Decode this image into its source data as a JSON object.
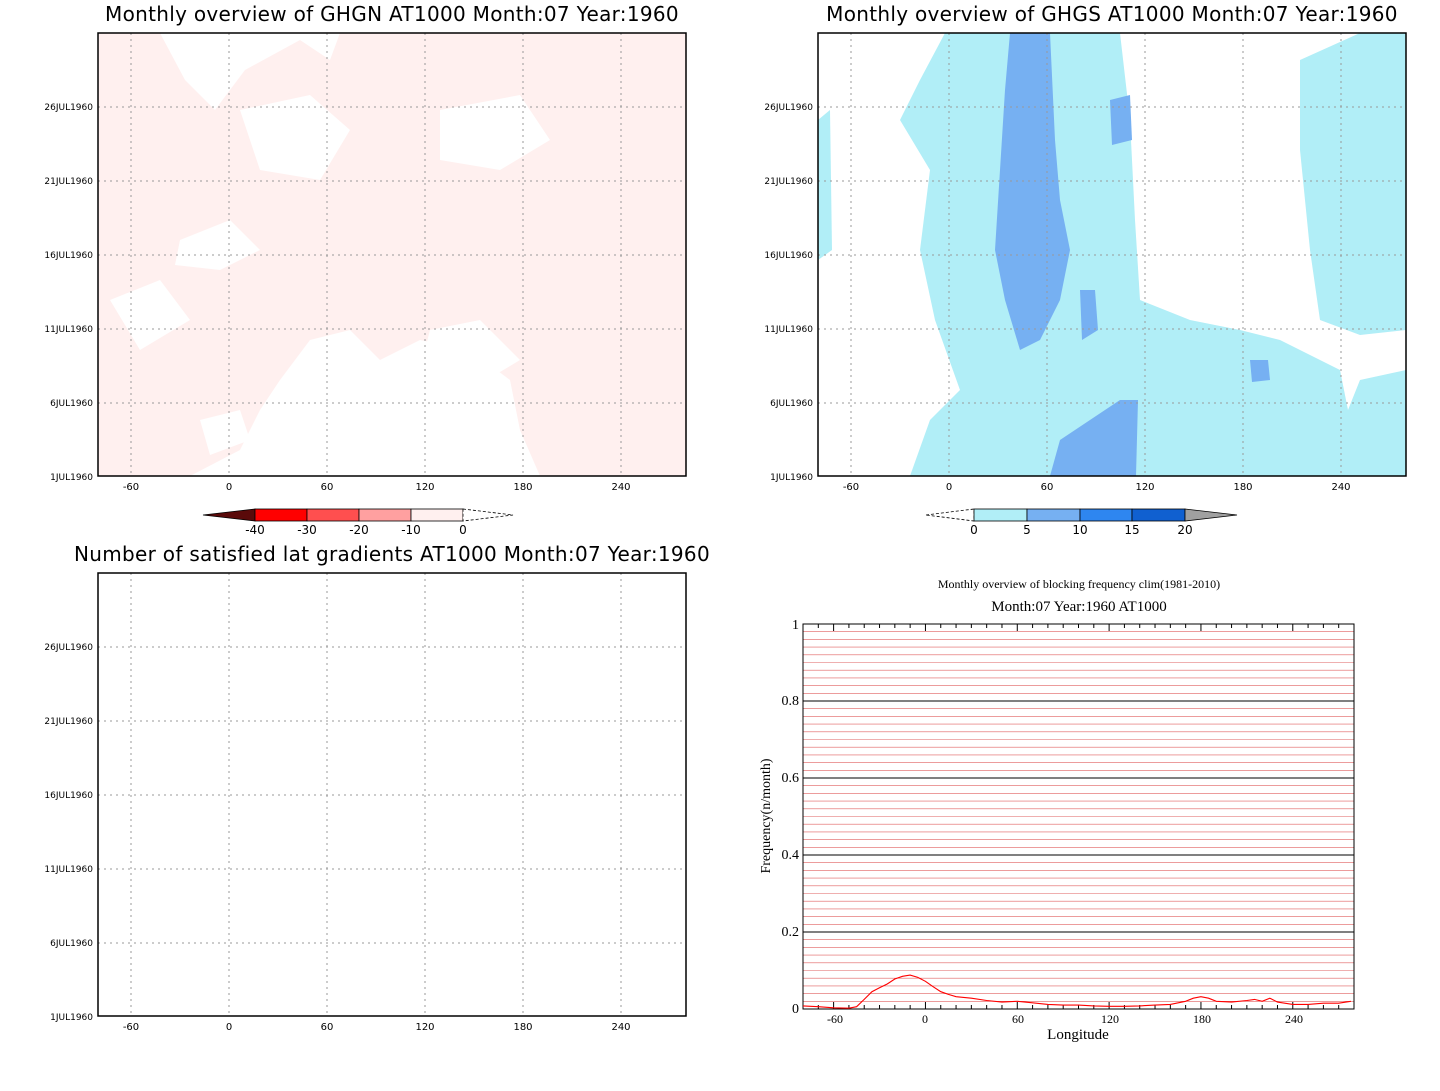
{
  "colors": {
    "ghgn_fill": "#fff0ef",
    "ghgs_light": "#b1eef7",
    "ghgs_mid": "#76b0f2",
    "freq_line": "#ff0000",
    "hline_red": "#e06060",
    "hline_black": "#000000"
  },
  "chart_data": [
    {
      "id": "ghgn",
      "type": "heatmap",
      "title": "Monthly overview of GHGN AT1000 Month:07 Year:1960",
      "x_ticks": [
        "-60",
        "0",
        "60",
        "120",
        "180",
        "240"
      ],
      "x_values": [
        -60,
        0,
        60,
        120,
        180,
        240
      ],
      "y_ticks": [
        "1JUL1960",
        "6JUL1960",
        "11JUL1960",
        "16JUL1960",
        "21JUL1960",
        "26JUL1960"
      ],
      "y_values": [
        1,
        6,
        11,
        16,
        21,
        26
      ],
      "xlim": [
        -80,
        280
      ],
      "ylim": [
        1,
        31
      ],
      "grid": true,
      "colorbar": {
        "labels": [
          "-40",
          "-30",
          "-20",
          "-10",
          "0"
        ],
        "colors": [
          "#5a0a0a",
          "#ff0000",
          "#ff4f4f",
          "#ffa0a0",
          "#fff0ef"
        ]
      }
    },
    {
      "id": "ghgs",
      "type": "heatmap",
      "title": "Monthly overview of GHGS AT1000 Month:07 Year:1960",
      "x_ticks": [
        "-60",
        "0",
        "60",
        "120",
        "180",
        "240"
      ],
      "x_values": [
        -60,
        0,
        60,
        120,
        180,
        240
      ],
      "y_ticks": [
        "1JUL1960",
        "6JUL1960",
        "11JUL1960",
        "16JUL1960",
        "21JUL1960",
        "26JUL1960"
      ],
      "y_values": [
        1,
        6,
        11,
        16,
        21,
        26
      ],
      "xlim": [
        -80,
        280
      ],
      "ylim": [
        1,
        31
      ],
      "grid": true,
      "colorbar": {
        "labels": [
          "0",
          "5",
          "10",
          "15",
          "20"
        ],
        "colors": [
          "#b1eef7",
          "#76b0f2",
          "#2e86f0",
          "#1060d0",
          "#a0a0a0"
        ]
      }
    },
    {
      "id": "lat_gradients",
      "type": "heatmap",
      "title": "Number of satisfied lat gradients AT1000 Month:07 Year:1960",
      "x_ticks": [
        "-60",
        "0",
        "60",
        "120",
        "180",
        "240"
      ],
      "x_values": [
        -60,
        0,
        60,
        120,
        180,
        240
      ],
      "y_ticks": [
        "1JUL1960",
        "6JUL1960",
        "11JUL1960",
        "16JUL1960",
        "21JUL1960",
        "26JUL1960"
      ],
      "y_values": [
        1,
        6,
        11,
        16,
        21,
        26
      ],
      "xlim": [
        -80,
        280
      ],
      "ylim": [
        1,
        31
      ],
      "grid": true
    },
    {
      "id": "blocking_freq",
      "type": "line",
      "title": "Monthly overview of blocking frequency clim(1981-2010)",
      "subtitle": "Month:07 Year:1960  AT1000",
      "xlabel": "Longitude",
      "ylabel": "Frequency(n/month)",
      "x_ticks": [
        "-60",
        "0",
        "60",
        "120",
        "180",
        "240"
      ],
      "x_values": [
        -60,
        0,
        60,
        120,
        180,
        240
      ],
      "y_ticks": [
        "0",
        "0.2",
        "0.4",
        "0.6",
        "0.8",
        "1"
      ],
      "y_values": [
        0,
        0.2,
        0.4,
        0.6,
        0.8,
        1
      ],
      "xlim": [
        -80,
        280
      ],
      "ylim": [
        0,
        1
      ],
      "series": [
        {
          "x": [
            -80,
            -70,
            -60,
            -50,
            -45,
            -40,
            -35,
            -30,
            -25,
            -20,
            -15,
            -10,
            -5,
            0,
            5,
            10,
            15,
            20,
            25,
            30,
            40,
            50,
            60,
            70,
            80,
            90,
            100,
            110,
            120,
            130,
            140,
            150,
            160,
            170,
            175,
            180,
            185,
            190,
            200,
            210,
            215,
            220,
            225,
            230,
            240,
            250,
            260,
            270,
            278
          ],
          "y": [
            0.008,
            0.006,
            0.003,
            0.002,
            0.006,
            0.025,
            0.045,
            0.055,
            0.065,
            0.078,
            0.085,
            0.088,
            0.082,
            0.072,
            0.058,
            0.045,
            0.038,
            0.032,
            0.03,
            0.028,
            0.022,
            0.018,
            0.02,
            0.016,
            0.012,
            0.01,
            0.01,
            0.008,
            0.007,
            0.007,
            0.008,
            0.01,
            0.012,
            0.02,
            0.028,
            0.032,
            0.028,
            0.02,
            0.018,
            0.022,
            0.025,
            0.02,
            0.028,
            0.018,
            0.012,
            0.012,
            0.015,
            0.015,
            0.02
          ]
        }
      ]
    }
  ]
}
